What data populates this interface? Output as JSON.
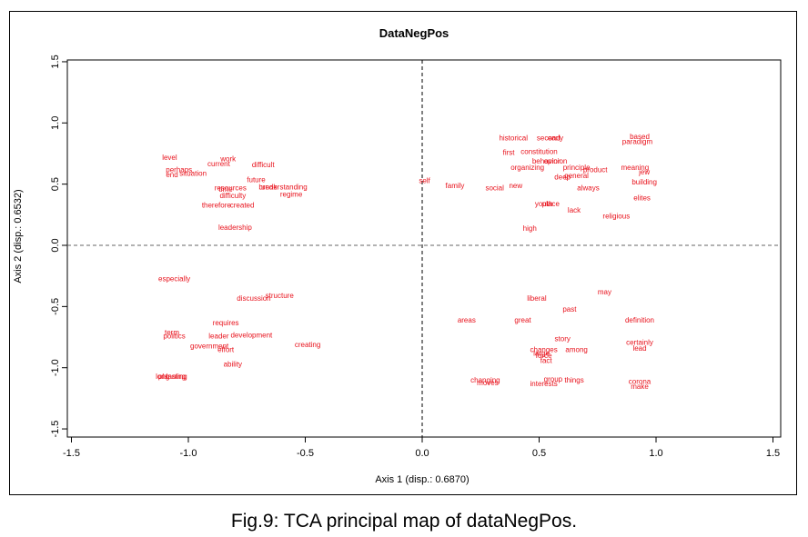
{
  "caption": "Fig.9: TCA principal map of dataNegPos.",
  "chart_data": {
    "type": "scatter",
    "title": "DataNegPos",
    "xlabel": "Axis 1 (disp.: 0.6870)",
    "ylabel": "Axis 2 (disp.: 0.6532)",
    "xlim": [
      -1.5,
      1.5
    ],
    "ylim": [
      -1.5,
      1.5
    ],
    "xticks": [
      "-1.5",
      "-1.0",
      "-0.5",
      "0.0",
      "0.5",
      "1.0",
      "1.5"
    ],
    "yticks": [
      "-1.5",
      "-1.0",
      "-0.5",
      "0.0",
      "0.5",
      "1.0",
      "1.5"
    ],
    "reference_lines": {
      "x": 0,
      "y": 0
    },
    "label_color": "#e8121c",
    "points": [
      {
        "label": "level",
        "x": -1.08,
        "y": 0.72
      },
      {
        "label": "work",
        "x": -0.83,
        "y": 0.71
      },
      {
        "label": "current",
        "x": -0.87,
        "y": 0.67
      },
      {
        "label": "difficult",
        "x": -0.68,
        "y": 0.66
      },
      {
        "label": "perhaps",
        "x": -1.04,
        "y": 0.62
      },
      {
        "label": "end",
        "x": -1.07,
        "y": 0.58
      },
      {
        "label": "situation",
        "x": -0.98,
        "y": 0.59
      },
      {
        "label": "future",
        "x": -0.71,
        "y": 0.54
      },
      {
        "label": "resources",
        "x": -0.82,
        "y": 0.47
      },
      {
        "label": "time",
        "x": -0.84,
        "y": 0.46
      },
      {
        "label": "break",
        "x": -0.66,
        "y": 0.48
      },
      {
        "label": "understanding",
        "x": -0.59,
        "y": 0.48
      },
      {
        "label": "difficulty",
        "x": -0.81,
        "y": 0.41
      },
      {
        "label": "regime",
        "x": -0.56,
        "y": 0.42
      },
      {
        "label": "therefore",
        "x": -0.88,
        "y": 0.33
      },
      {
        "label": "created",
        "x": -0.77,
        "y": 0.33
      },
      {
        "label": "leadership",
        "x": -0.8,
        "y": 0.15
      },
      {
        "label": "especially",
        "x": -1.06,
        "y": -0.27
      },
      {
        "label": "discussion",
        "x": -0.72,
        "y": -0.43
      },
      {
        "label": "structure",
        "x": -0.61,
        "y": -0.41
      },
      {
        "label": "requires",
        "x": -0.84,
        "y": -0.63
      },
      {
        "label": "term",
        "x": -1.07,
        "y": -0.71
      },
      {
        "label": "politics",
        "x": -1.06,
        "y": -0.74
      },
      {
        "label": "leader",
        "x": -0.87,
        "y": -0.74
      },
      {
        "label": "development",
        "x": -0.73,
        "y": -0.73
      },
      {
        "label": "government",
        "x": -0.91,
        "y": -0.82
      },
      {
        "label": "effort",
        "x": -0.84,
        "y": -0.85
      },
      {
        "label": "creating",
        "x": -0.49,
        "y": -0.81
      },
      {
        "label": "ability",
        "x": -0.81,
        "y": -0.97
      },
      {
        "label": "long",
        "x": -1.11,
        "y": -1.07
      },
      {
        "label": "planning",
        "x": -1.07,
        "y": -1.07
      },
      {
        "label": "lasting",
        "x": -1.05,
        "y": -1.07
      },
      {
        "label": "historical",
        "x": 0.39,
        "y": 0.88
      },
      {
        "label": "second",
        "x": 0.54,
        "y": 0.88
      },
      {
        "label": "early",
        "x": 0.57,
        "y": 0.88
      },
      {
        "label": "based",
        "x": 0.93,
        "y": 0.89
      },
      {
        "label": "paradigm",
        "x": 0.92,
        "y": 0.85
      },
      {
        "label": "first",
        "x": 0.37,
        "y": 0.76
      },
      {
        "label": "constitution",
        "x": 0.5,
        "y": 0.77
      },
      {
        "label": "behavior",
        "x": 0.53,
        "y": 0.69
      },
      {
        "label": "opinion",
        "x": 0.57,
        "y": 0.69
      },
      {
        "label": "organizing",
        "x": 0.45,
        "y": 0.64
      },
      {
        "label": "principle",
        "x": 0.66,
        "y": 0.64
      },
      {
        "label": "product",
        "x": 0.74,
        "y": 0.62
      },
      {
        "label": "deep",
        "x": 0.6,
        "y": 0.56
      },
      {
        "label": "general",
        "x": 0.66,
        "y": 0.57
      },
      {
        "label": "meaning",
        "x": 0.91,
        "y": 0.64
      },
      {
        "label": "jew",
        "x": 0.95,
        "y": 0.6
      },
      {
        "label": "building",
        "x": 0.95,
        "y": 0.52
      },
      {
        "label": "self",
        "x": 0.01,
        "y": 0.53
      },
      {
        "label": "family",
        "x": 0.14,
        "y": 0.49
      },
      {
        "label": "social",
        "x": 0.31,
        "y": 0.47
      },
      {
        "label": "new",
        "x": 0.4,
        "y": 0.49
      },
      {
        "label": "always",
        "x": 0.71,
        "y": 0.47
      },
      {
        "label": "elites",
        "x": 0.94,
        "y": 0.39
      },
      {
        "label": "youth",
        "x": 0.52,
        "y": 0.34
      },
      {
        "label": "place",
        "x": 0.55,
        "y": 0.34
      },
      {
        "label": "lack",
        "x": 0.65,
        "y": 0.29
      },
      {
        "label": "religious",
        "x": 0.83,
        "y": 0.24
      },
      {
        "label": "high",
        "x": 0.46,
        "y": 0.14
      },
      {
        "label": "may",
        "x": 0.78,
        "y": -0.38
      },
      {
        "label": "liberal",
        "x": 0.49,
        "y": -0.43
      },
      {
        "label": "past",
        "x": 0.63,
        "y": -0.52
      },
      {
        "label": "areas",
        "x": 0.19,
        "y": -0.61
      },
      {
        "label": "great",
        "x": 0.43,
        "y": -0.61
      },
      {
        "label": "definition",
        "x": 0.93,
        "y": -0.61
      },
      {
        "label": "story",
        "x": 0.6,
        "y": -0.76
      },
      {
        "label": "certainly",
        "x": 0.93,
        "y": -0.79
      },
      {
        "label": "changes",
        "x": 0.52,
        "y": -0.85
      },
      {
        "label": "among",
        "x": 0.66,
        "y": -0.85
      },
      {
        "label": "lead",
        "x": 0.93,
        "y": -0.84
      },
      {
        "label": "large",
        "x": 0.51,
        "y": -0.88
      },
      {
        "label": "force",
        "x": 0.52,
        "y": -0.9
      },
      {
        "label": "fact",
        "x": 0.53,
        "y": -0.94
      },
      {
        "label": "changing",
        "x": 0.27,
        "y": -1.1
      },
      {
        "label": "moves",
        "x": 0.28,
        "y": -1.12
      },
      {
        "label": "group",
        "x": 0.56,
        "y": -1.09
      },
      {
        "label": "interests",
        "x": 0.52,
        "y": -1.13
      },
      {
        "label": "things",
        "x": 0.65,
        "y": -1.1
      },
      {
        "label": "corona",
        "x": 0.93,
        "y": -1.11
      },
      {
        "label": "make",
        "x": 0.93,
        "y": -1.15
      }
    ]
  }
}
